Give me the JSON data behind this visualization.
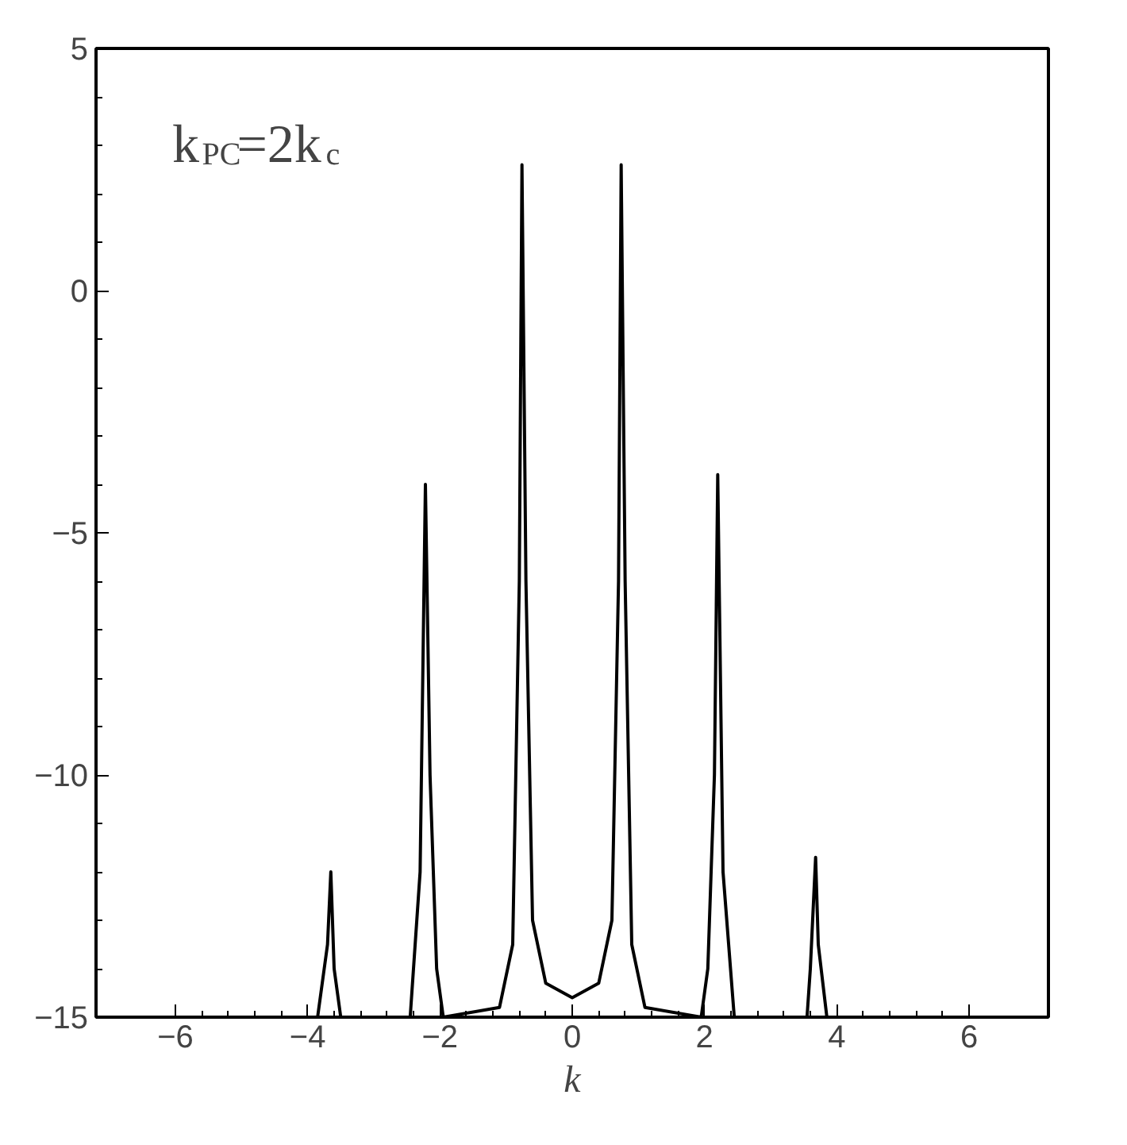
{
  "chart_data": {
    "type": "line",
    "xlabel": "k",
    "annotations": [
      "k$_{PC}$=2k$_{c}$"
    ],
    "x": [
      -7.2,
      -3.85,
      -3.7,
      -3.65,
      -3.6,
      -3.5,
      -2.45,
      -2.3,
      -2.22,
      -2.15,
      -2.05,
      -1.95,
      -1.1,
      -0.9,
      -0.8,
      -0.76,
      -0.7,
      -0.6,
      -0.4,
      0,
      0.4,
      0.6,
      0.7,
      0.74,
      0.8,
      0.9,
      1.1,
      1.95,
      2.05,
      2.15,
      2.2,
      2.28,
      2.45,
      3.55,
      3.6,
      3.68,
      3.72,
      3.85,
      7.2
    ],
    "series": [
      {
        "color": "#000000",
        "values": [
          -15,
          -15,
          -13.5,
          -12,
          -14,
          -15,
          -15,
          -12,
          -4,
          -10,
          -14,
          -15,
          -14.8,
          -13.5,
          -6,
          2.6,
          -6,
          -13,
          -14.3,
          -14.6,
          -14.3,
          -13,
          -6,
          2.6,
          -6,
          -13.5,
          -14.8,
          -15,
          -14,
          -10,
          -3.8,
          -12,
          -15,
          -15,
          -14,
          -11.7,
          -13.5,
          -15,
          -15
        ]
      }
    ],
    "xlim": [
      -7.2,
      7.2
    ],
    "ylim": [
      -15,
      5
    ],
    "xticks": [
      -6,
      -4,
      -2,
      0,
      2,
      4,
      6
    ],
    "yticks": [
      -15,
      -10,
      -5,
      0,
      5
    ],
    "grid": false,
    "marker": "none",
    "line_style": "solid"
  }
}
